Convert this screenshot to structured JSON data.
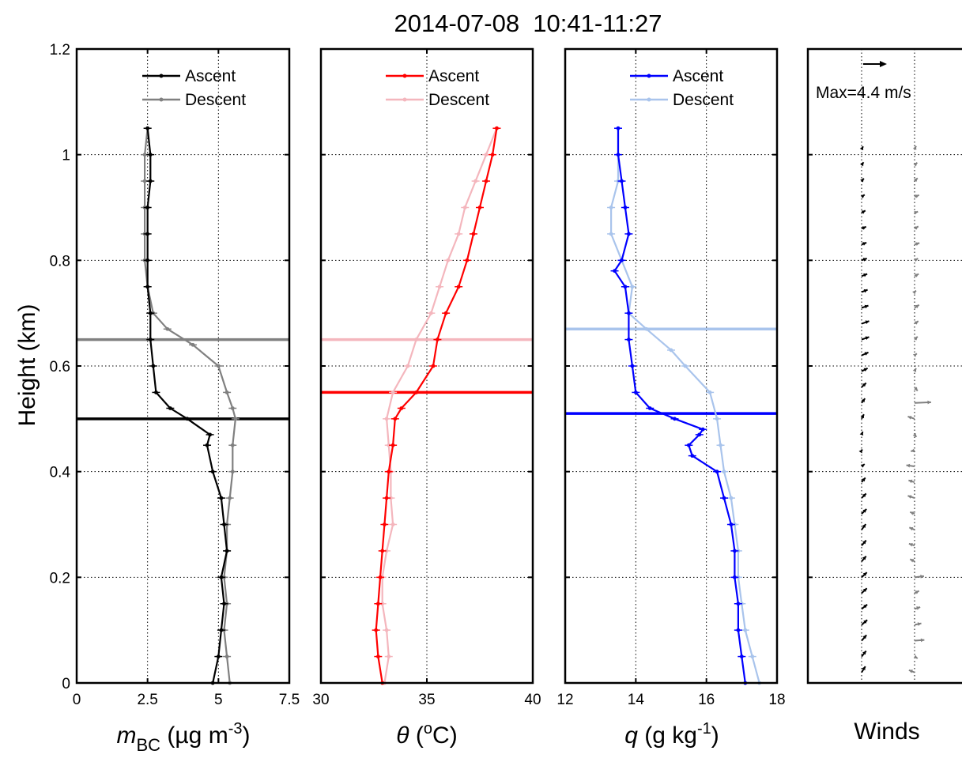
{
  "title": "2014-07-08  10:41-11:27",
  "y_axis": {
    "label": "Height (km)",
    "ylim": [
      0,
      1.2
    ],
    "ticks": [
      0,
      0.2,
      0.4,
      0.6,
      0.8,
      1,
      1.2
    ],
    "tick_labels": [
      "0",
      "0.2",
      "0.4",
      "0.6",
      "0.8",
      "1",
      "1.2"
    ]
  },
  "panel_labels": {
    "bc": {
      "main": "m",
      "sub": "BC",
      "rest": " (µg m",
      "sup": "-3",
      "close": ")"
    },
    "theta": {
      "main": "θ",
      "rest": " (",
      "sup": "o",
      "close": "C)"
    },
    "q": {
      "main": "q",
      "rest": " (g kg",
      "sup": "-1",
      "close": ")"
    },
    "winds": "Winds"
  },
  "legend": {
    "ascent": "Ascent",
    "descent": "Descent"
  },
  "wind_max_label": "Max=4.4 m/s",
  "colors": {
    "bc_ascent": "#000000",
    "bc_descent": "#808080",
    "theta_ascent": "#ff0000",
    "theta_descent": "#f4b6bd",
    "q_ascent": "#0000ff",
    "q_descent": "#a9c4ec",
    "wind_ascent": "#000000",
    "wind_descent": "#808080"
  },
  "chart_data": [
    {
      "type": "line",
      "id": "bc",
      "xlabel": "mBC (µg m-3)",
      "ylabel": "Height (km)",
      "xlim": [
        0,
        7.5
      ],
      "xticks": [
        0,
        2.5,
        5,
        7.5
      ],
      "xtick_labels": [
        "0",
        "2.5",
        "5",
        "7.5"
      ],
      "ylim": [
        0,
        1.2
      ],
      "grid": true,
      "legend_position": "top-right",
      "series": [
        {
          "name": "Ascent",
          "role": "ascent",
          "y": [
            0,
            0.05,
            0.1,
            0.15,
            0.2,
            0.25,
            0.3,
            0.35,
            0.4,
            0.45,
            0.47,
            0.5,
            0.52,
            0.55,
            0.6,
            0.65,
            0.7,
            0.75,
            0.8,
            0.85,
            0.9,
            0.95,
            1.0,
            1.05
          ],
          "x": [
            4.8,
            5.0,
            5.1,
            5.2,
            5.1,
            5.3,
            5.2,
            5.1,
            4.8,
            4.6,
            4.7,
            3.9,
            3.3,
            2.8,
            2.7,
            2.6,
            2.6,
            2.5,
            2.5,
            2.5,
            2.5,
            2.6,
            2.6,
            2.5
          ]
        },
        {
          "name": "Descent",
          "role": "descent",
          "y": [
            0,
            0.05,
            0.1,
            0.15,
            0.2,
            0.25,
            0.3,
            0.35,
            0.4,
            0.45,
            0.5,
            0.52,
            0.55,
            0.6,
            0.64,
            0.67,
            0.7,
            0.75,
            0.8,
            0.85,
            0.9,
            0.95,
            1.0,
            1.05
          ],
          "x": [
            5.4,
            5.3,
            5.2,
            5.3,
            5.2,
            5.3,
            5.3,
            5.4,
            5.5,
            5.5,
            5.6,
            5.5,
            5.3,
            5.0,
            4.1,
            3.2,
            2.7,
            2.5,
            2.4,
            2.4,
            2.4,
            2.4,
            2.4,
            2.5
          ]
        }
      ],
      "hlines": [
        {
          "y": 0.65,
          "role": "descent"
        },
        {
          "y": 0.5,
          "role": "ascent"
        }
      ]
    },
    {
      "type": "line",
      "id": "theta",
      "xlabel": "θ (oC)",
      "xlim": [
        30,
        40
      ],
      "xticks": [
        30,
        35,
        40
      ],
      "xtick_labels": [
        "30",
        "35",
        "40"
      ],
      "ylim": [
        0,
        1.2
      ],
      "grid": true,
      "legend_position": "top-right",
      "series": [
        {
          "name": "Ascent",
          "role": "ascent",
          "y": [
            0,
            0.05,
            0.1,
            0.15,
            0.2,
            0.25,
            0.3,
            0.35,
            0.4,
            0.45,
            0.5,
            0.52,
            0.55,
            0.6,
            0.65,
            0.7,
            0.75,
            0.8,
            0.85,
            0.9,
            0.95,
            1.0,
            1.05
          ],
          "x": [
            32.9,
            32.7,
            32.6,
            32.7,
            32.8,
            32.9,
            33.0,
            33.1,
            33.2,
            33.4,
            33.5,
            33.8,
            34.5,
            35.3,
            35.5,
            35.9,
            36.5,
            36.9,
            37.2,
            37.5,
            37.8,
            38.1,
            38.3
          ]
        },
        {
          "name": "Descent",
          "role": "descent",
          "y": [
            0,
            0.05,
            0.1,
            0.15,
            0.2,
            0.25,
            0.3,
            0.35,
            0.4,
            0.45,
            0.5,
            0.55,
            0.6,
            0.65,
            0.7,
            0.75,
            0.8,
            0.85,
            0.9,
            0.95,
            1.0,
            1.05
          ],
          "x": [
            33.0,
            33.2,
            33.1,
            32.9,
            32.9,
            33.1,
            33.4,
            33.3,
            33.3,
            33.2,
            33.1,
            33.4,
            34.1,
            34.5,
            35.2,
            35.6,
            36.0,
            36.5,
            36.8,
            37.3,
            37.8,
            38.3
          ]
        }
      ],
      "hlines": [
        {
          "y": 0.65,
          "role": "descent"
        },
        {
          "y": 0.55,
          "role": "ascent"
        }
      ]
    },
    {
      "type": "line",
      "id": "q",
      "xlabel": "q (g kg-1)",
      "xlim": [
        12,
        18
      ],
      "xticks": [
        12,
        14,
        16,
        18
      ],
      "xtick_labels": [
        "12",
        "14",
        "16",
        "18"
      ],
      "ylim": [
        0,
        1.2
      ],
      "grid": true,
      "legend_position": "top-right",
      "series": [
        {
          "name": "Ascent",
          "role": "ascent",
          "y": [
            0,
            0.05,
            0.1,
            0.15,
            0.2,
            0.25,
            0.3,
            0.35,
            0.4,
            0.43,
            0.45,
            0.47,
            0.48,
            0.5,
            0.52,
            0.55,
            0.6,
            0.65,
            0.7,
            0.75,
            0.78,
            0.8,
            0.85,
            0.9,
            0.95,
            1.0,
            1.05
          ],
          "x": [
            17.1,
            17.0,
            16.9,
            16.9,
            16.8,
            16.8,
            16.7,
            16.5,
            16.3,
            15.6,
            15.5,
            15.8,
            15.9,
            15.1,
            14.4,
            14.0,
            13.9,
            13.8,
            13.8,
            13.7,
            13.4,
            13.6,
            13.8,
            13.7,
            13.6,
            13.5,
            13.5
          ]
        },
        {
          "name": "Descent",
          "role": "descent",
          "y": [
            0,
            0.05,
            0.1,
            0.15,
            0.2,
            0.25,
            0.3,
            0.35,
            0.4,
            0.45,
            0.5,
            0.55,
            0.6,
            0.63,
            0.67,
            0.7,
            0.75,
            0.8,
            0.85,
            0.9,
            0.95,
            1.0,
            1.05
          ],
          "x": [
            17.5,
            17.3,
            17.1,
            17.0,
            16.9,
            16.9,
            16.8,
            16.7,
            16.5,
            16.4,
            16.3,
            16.1,
            15.4,
            15.0,
            14.3,
            13.8,
            13.9,
            13.6,
            13.3,
            13.3,
            13.5,
            13.5,
            13.5
          ]
        }
      ],
      "hlines": [
        {
          "y": 0.67,
          "role": "descent"
        },
        {
          "y": 0.51,
          "role": "ascent"
        }
      ]
    },
    {
      "type": "quiver",
      "id": "winds",
      "xlabel": "Winds",
      "ylim": [
        0,
        1.2
      ],
      "max_speed_ms": 4.4,
      "reference_label": "Max=4.4 m/s",
      "series": [
        {
          "name": "Ascent",
          "role": "ascent",
          "y": [
            0.02,
            0.05,
            0.08,
            0.11,
            0.14,
            0.17,
            0.2,
            0.23,
            0.26,
            0.29,
            0.32,
            0.35,
            0.38,
            0.41,
            0.44,
            0.47,
            0.5,
            0.53,
            0.56,
            0.59,
            0.62,
            0.65,
            0.68,
            0.71,
            0.74,
            0.77,
            0.8,
            0.83,
            0.86,
            0.89,
            0.92,
            0.95,
            0.98,
            1.01
          ],
          "u": [
            1.0,
            1.2,
            1.3,
            1.5,
            1.5,
            1.4,
            1.4,
            1.2,
            1.2,
            1.1,
            1.3,
            1.2,
            1.0,
            0.8,
            0.2,
            0.3,
            0.6,
            0.9,
            1.2,
            1.6,
            1.8,
            2.0,
            2.0,
            1.8,
            1.6,
            1.5,
            1.4,
            1.3,
            1.2,
            1.0,
            0.8,
            0.6,
            0.5,
            0.4
          ],
          "v": [
            1.6,
            1.5,
            1.5,
            1.3,
            1.2,
            1.3,
            1.3,
            1.4,
            1.4,
            1.5,
            1.3,
            1.2,
            1.2,
            0.6,
            0.3,
            0.8,
            1.2,
            1.2,
            1.1,
            0.8,
            0.8,
            0.7,
            0.7,
            0.6,
            0.6,
            0.6,
            0.5,
            0.5,
            0.5,
            0.6,
            0.6,
            0.7,
            0.8,
            0.8
          ]
        },
        {
          "name": "Descent",
          "role": "descent",
          "y": [
            0.02,
            0.05,
            0.08,
            0.11,
            0.14,
            0.17,
            0.2,
            0.23,
            0.26,
            0.29,
            0.32,
            0.35,
            0.38,
            0.41,
            0.44,
            0.47,
            0.5,
            0.53,
            0.56,
            0.59,
            0.62,
            0.65,
            0.68,
            0.71,
            0.74,
            0.77,
            0.8,
            0.83,
            0.86,
            0.89,
            0.92,
            0.95,
            0.98,
            1.01
          ],
          "u": [
            -1.5,
            0.8,
            2.6,
            1.8,
            1.5,
            1.2,
            2.5,
            -1.2,
            -1.5,
            -1.4,
            -1.2,
            -1.8,
            -1.6,
            -2.2,
            -1.0,
            0.5,
            -1.8,
            4.4,
            0.8,
            0.4,
            0.6,
            0.8,
            1.0,
            1.2,
            0.4,
            1.1,
            0.9,
            1.3,
            1.0,
            0.9,
            1.2,
            0.8,
            0.7,
            0.4
          ],
          "v": [
            0.6,
            -0.5,
            0.2,
            0.4,
            0.5,
            0.6,
            0.3,
            0.6,
            0.5,
            0.6,
            0.5,
            0.6,
            0.5,
            0.3,
            -0.2,
            -0.6,
            0.6,
            0.2,
            -1.0,
            0.8,
            0.5,
            0.8,
            0.7,
            0.8,
            0.4,
            0.6,
            0.5,
            0.4,
            0.6,
            0.3,
            0.5,
            0.8,
            0.7,
            0.9
          ]
        }
      ]
    }
  ]
}
